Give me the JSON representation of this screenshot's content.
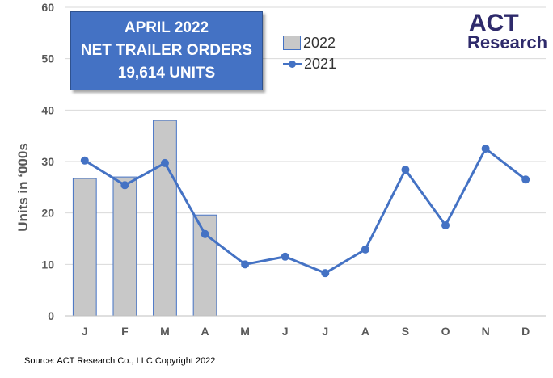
{
  "title_box": {
    "line1": "APRIL 2022",
    "line2": "NET TRAILER ORDERS",
    "line3": "19,614  UNITS"
  },
  "logo": {
    "act": "ACT",
    "research": "Research"
  },
  "source": "Source: ACT Research Co., LLC  Copyright 2022",
  "colors": {
    "bar_fill": "#c8c8c8",
    "bar_stroke": "#4472c4",
    "line": "#4472c4",
    "title_bg": "#4472c4",
    "logo_text": "#2e2a6b",
    "logo_accent": "#e8772e"
  },
  "chart_data": {
    "type": "bar",
    "categories": [
      "J",
      "F",
      "M",
      "A",
      "M",
      "J",
      "J",
      "A",
      "S",
      "O",
      "N",
      "D"
    ],
    "series": [
      {
        "name": "2022",
        "type": "bar",
        "values": [
          26.7,
          27.0,
          38.0,
          19.6,
          null,
          null,
          null,
          null,
          null,
          null,
          null,
          null
        ]
      },
      {
        "name": "2021",
        "type": "line",
        "values": [
          30.2,
          25.4,
          29.7,
          15.9,
          10.0,
          11.5,
          8.3,
          12.9,
          28.4,
          17.6,
          32.5,
          26.5
        ]
      }
    ],
    "ylabel": "Units in ‘000s",
    "xlabel": "",
    "ylim": [
      0,
      60
    ],
    "yticks": [
      0,
      10,
      20,
      30,
      40,
      50,
      60
    ],
    "grid": true,
    "legend_position": "top-center"
  }
}
